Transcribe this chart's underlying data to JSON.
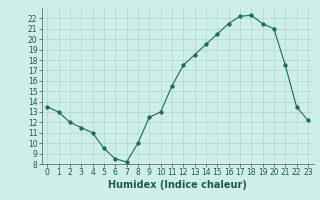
{
  "x": [
    0,
    1,
    2,
    3,
    4,
    5,
    6,
    7,
    8,
    9,
    10,
    11,
    12,
    13,
    14,
    15,
    16,
    17,
    18,
    19,
    20,
    21,
    22,
    23
  ],
  "y": [
    13.5,
    13.0,
    12.0,
    11.5,
    11.0,
    9.5,
    8.5,
    8.2,
    10.0,
    12.5,
    13.0,
    15.5,
    17.5,
    18.5,
    19.5,
    20.5,
    21.5,
    22.2,
    22.3,
    21.5,
    21.0,
    17.5,
    13.5,
    12.2
  ],
  "line_color": "#1a6b5a",
  "marker": "o",
  "marker_size": 2.5,
  "xlabel": "Humidex (Indice chaleur)",
  "xlim": [
    -0.5,
    23.5
  ],
  "ylim": [
    8,
    23
  ],
  "yticks": [
    8,
    9,
    10,
    11,
    12,
    13,
    14,
    15,
    16,
    17,
    18,
    19,
    20,
    21,
    22
  ],
  "xticks": [
    0,
    1,
    2,
    3,
    4,
    5,
    6,
    7,
    8,
    9,
    10,
    11,
    12,
    13,
    14,
    15,
    16,
    17,
    18,
    19,
    20,
    21,
    22,
    23
  ],
  "bg_color": "#ceeee8",
  "grid_color": "#b0d8d2",
  "tick_fontsize": 5.5,
  "xlabel_fontsize": 7
}
